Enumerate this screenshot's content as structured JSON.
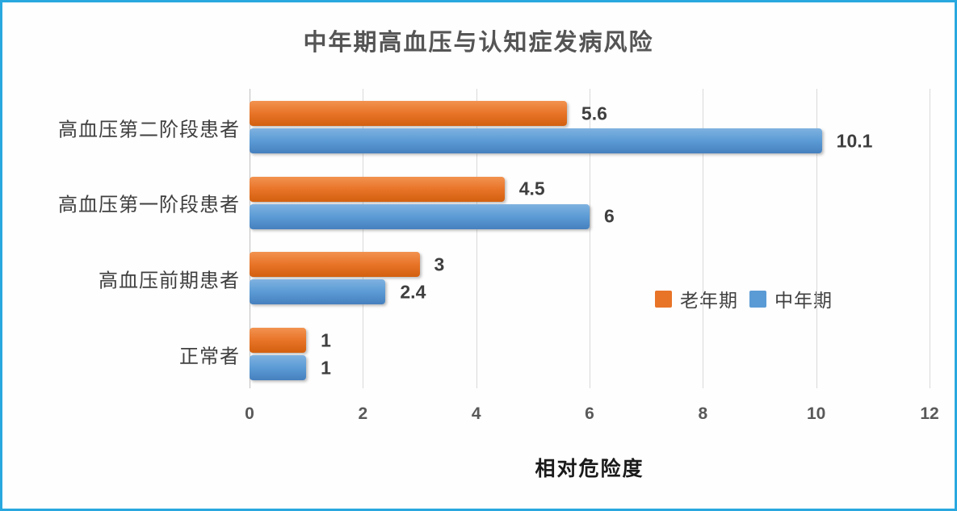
{
  "frame": {
    "border_color": "#29A8E0",
    "background": "#FEFEFE"
  },
  "chart_data": {
    "type": "bar",
    "orientation": "horizontal",
    "title": "中年期高血压与认知症发病风险",
    "xlabel": "相对危险度",
    "categories": [
      "高血压第二阶段患者",
      "高血压第一阶段患者",
      "高血压前期患者",
      "正常者"
    ],
    "series": [
      {
        "name": "老年期",
        "color": "#E87428",
        "color_light": "#F29350",
        "color_dark": "#D2600F",
        "values": [
          5.6,
          4.5,
          3,
          1
        ],
        "labels": [
          "5.6",
          "4.5",
          "3",
          "1"
        ]
      },
      {
        "name": "中年期",
        "color": "#5B9BD5",
        "color_light": "#7FB2E0",
        "color_dark": "#4680BE",
        "values": [
          10.1,
          6,
          2.4,
          1
        ],
        "labels": [
          "10.1",
          "6",
          "2.4",
          "1"
        ]
      }
    ],
    "xlim": [
      0,
      12
    ],
    "x_ticks": [
      "0",
      "2",
      "4",
      "6",
      "8",
      "10",
      "12"
    ],
    "grid": true,
    "gridline_color": "#D9D9D9",
    "legend_position": "inside-right-middle",
    "legend_entries": [
      "老年期",
      "中年期"
    ]
  }
}
